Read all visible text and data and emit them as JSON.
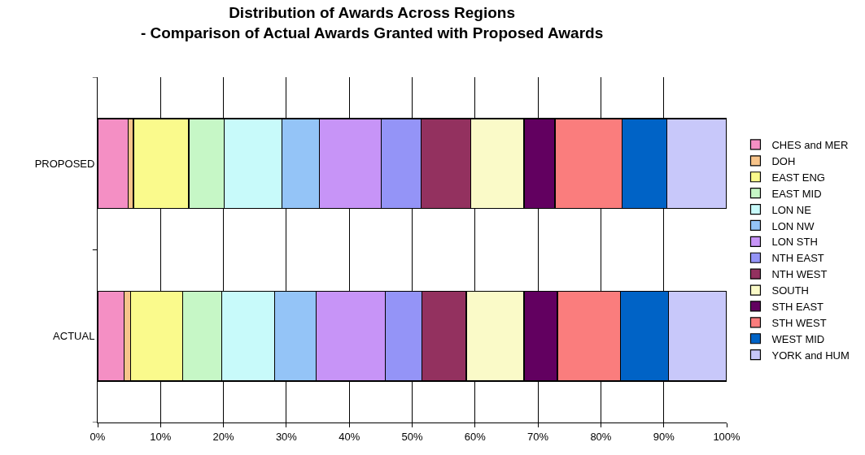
{
  "chart_data": {
    "type": "bar",
    "orientation": "horizontal",
    "stacked": true,
    "title": "Distribution of Awards Across Regions\n- Comparison of Actual Awards Granted with Proposed Awards",
    "categories": [
      "PROPOSED",
      "ACTUAL"
    ],
    "xlim": [
      0,
      100
    ],
    "xticks": [
      {
        "value": 0,
        "label": "0%"
      },
      {
        "value": 10,
        "label": "10%"
      },
      {
        "value": 20,
        "label": "20%"
      },
      {
        "value": 30,
        "label": "30%"
      },
      {
        "value": 40,
        "label": "40%"
      },
      {
        "value": 50,
        "label": "50%"
      },
      {
        "value": 60,
        "label": "60%"
      },
      {
        "value": 70,
        "label": "70%"
      },
      {
        "value": 80,
        "label": "80%"
      },
      {
        "value": 90,
        "label": "90%"
      },
      {
        "value": 100,
        "label": "100%"
      }
    ],
    "grid": "x",
    "legend": "right",
    "series": [
      {
        "name": "CHES and MER",
        "color": "#f48fc4",
        "values": [
          4.8,
          4.2
        ]
      },
      {
        "name": "DOH",
        "color": "#f7c48a",
        "values": [
          0.9,
          1.0
        ]
      },
      {
        "name": "EAST ENG",
        "color": "#fafa8c",
        "values": [
          8.8,
          8.3
        ]
      },
      {
        "name": "EAST MID",
        "color": "#c6f7c6",
        "values": [
          5.6,
          6.2
        ]
      },
      {
        "name": "LON NE",
        "color": "#c8fafa",
        "values": [
          9.2,
          8.4
        ]
      },
      {
        "name": "LON NW",
        "color": "#94c4f7",
        "values": [
          6.0,
          6.6
        ]
      },
      {
        "name": "LON STH",
        "color": "#c794f7",
        "values": [
          9.8,
          11.0
        ]
      },
      {
        "name": "NTH EAST",
        "color": "#9494f7",
        "values": [
          6.3,
          5.9
        ]
      },
      {
        "name": "NTH WEST",
        "color": "#93315f",
        "values": [
          7.9,
          7.0
        ]
      },
      {
        "name": "SOUTH",
        "color": "#fafac8",
        "values": [
          8.5,
          9.2
        ]
      },
      {
        "name": "STH EAST",
        "color": "#620060",
        "values": [
          4.9,
          5.3
        ]
      },
      {
        "name": "STH WEST",
        "color": "#fa7d7d",
        "values": [
          10.7,
          10.0
        ]
      },
      {
        "name": "WEST MID",
        "color": "#0063c6",
        "values": [
          7.1,
          7.6
        ]
      },
      {
        "name": "YORK and HUM",
        "color": "#c8c8fa",
        "values": [
          9.5,
          9.3
        ]
      }
    ]
  }
}
